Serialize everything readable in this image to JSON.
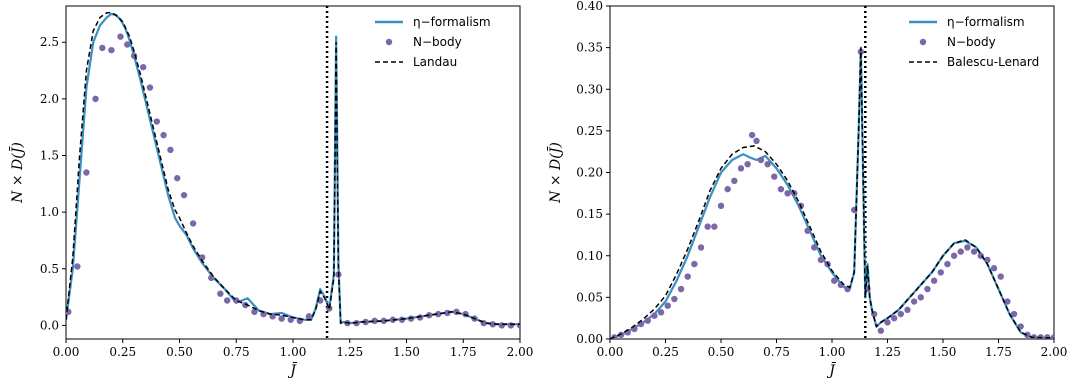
{
  "colors": {
    "eta": "#3a8fc3",
    "nbody": "#7b68a8",
    "dashed": "#000000",
    "vline": "#000000"
  },
  "chart_data": [
    {
      "type": "line",
      "title": "",
      "xlabel": "J̄",
      "ylabel": "N × D(J̄)",
      "xlim": [
        0.0,
        2.0
      ],
      "ylim": [
        -0.12,
        2.82
      ],
      "xticks": [
        "0.00",
        "0.25",
        "0.50",
        "0.75",
        "1.00",
        "1.25",
        "1.50",
        "1.75",
        "2.00"
      ],
      "yticks": [
        "0.0",
        "0.5",
        "1.0",
        "1.5",
        "2.0",
        "2.5"
      ],
      "grid": false,
      "legend_position": "top-right",
      "vertical_line_x": 1.15,
      "series": [
        {
          "name": "η−formalism",
          "style": "solid",
          "x": [
            0.0,
            0.03,
            0.06,
            0.09,
            0.12,
            0.15,
            0.18,
            0.2,
            0.22,
            0.24,
            0.26,
            0.28,
            0.3,
            0.33,
            0.36,
            0.39,
            0.42,
            0.45,
            0.48,
            0.5,
            0.53,
            0.56,
            0.6,
            0.65,
            0.7,
            0.75,
            0.8,
            0.85,
            0.9,
            0.95,
            1.0,
            1.05,
            1.08,
            1.1,
            1.12,
            1.14,
            1.16,
            1.18,
            1.19,
            1.2,
            1.21,
            1.22,
            1.25,
            1.3,
            1.4,
            1.5,
            1.6,
            1.7,
            1.75,
            1.8,
            1.85,
            1.9,
            2.0
          ],
          "y": [
            0.05,
            0.5,
            1.3,
            2.1,
            2.5,
            2.65,
            2.72,
            2.75,
            2.74,
            2.7,
            2.63,
            2.52,
            2.38,
            2.15,
            1.9,
            1.65,
            1.4,
            1.15,
            0.95,
            0.88,
            0.8,
            0.68,
            0.55,
            0.42,
            0.32,
            0.2,
            0.24,
            0.13,
            0.1,
            0.11,
            0.07,
            0.05,
            0.05,
            0.15,
            0.32,
            0.25,
            0.15,
            0.45,
            2.55,
            0.55,
            0.02,
            0.03,
            0.02,
            0.03,
            0.04,
            0.06,
            0.09,
            0.12,
            0.1,
            0.06,
            0.02,
            0.01,
            0.01
          ]
        },
        {
          "name": "N−body",
          "style": "markers",
          "x": [
            0.01,
            0.05,
            0.09,
            0.13,
            0.16,
            0.2,
            0.24,
            0.27,
            0.3,
            0.34,
            0.37,
            0.4,
            0.43,
            0.46,
            0.49,
            0.52,
            0.56,
            0.6,
            0.64,
            0.68,
            0.71,
            0.75,
            0.79,
            0.83,
            0.87,
            0.91,
            0.95,
            0.99,
            1.03,
            1.07,
            1.12,
            1.16,
            1.2,
            1.24,
            1.28,
            1.32,
            1.36,
            1.4,
            1.44,
            1.48,
            1.52,
            1.56,
            1.6,
            1.64,
            1.68,
            1.72,
            1.76,
            1.8,
            1.84,
            1.88,
            1.92,
            1.96,
            2.0
          ],
          "y": [
            0.12,
            0.52,
            1.35,
            2.0,
            2.45,
            2.43,
            2.55,
            2.48,
            2.38,
            2.28,
            2.1,
            1.8,
            1.68,
            1.55,
            1.3,
            1.15,
            0.9,
            0.6,
            0.42,
            0.28,
            0.22,
            0.22,
            0.18,
            0.12,
            0.1,
            0.08,
            0.06,
            0.05,
            0.04,
            0.08,
            0.22,
            0.15,
            0.45,
            0.02,
            0.02,
            0.03,
            0.04,
            0.04,
            0.05,
            0.05,
            0.06,
            0.07,
            0.09,
            0.1,
            0.11,
            0.12,
            0.1,
            0.06,
            0.02,
            0.01,
            0.0,
            0.0,
            0.0
          ]
        },
        {
          "name": "Landau",
          "style": "dashed",
          "x": [
            0.0,
            0.03,
            0.06,
            0.09,
            0.12,
            0.15,
            0.18,
            0.2,
            0.22,
            0.25,
            0.28,
            0.3,
            0.33,
            0.36,
            0.39,
            0.42,
            0.45,
            0.48,
            0.5,
            0.53,
            0.56,
            0.6,
            0.65,
            0.7,
            0.75,
            0.8,
            0.85,
            0.9,
            0.95,
            1.0,
            1.05,
            1.08,
            1.1,
            1.12,
            1.14,
            1.16,
            1.18,
            1.19,
            1.2,
            1.21,
            1.22,
            1.25,
            1.3,
            1.4,
            1.5,
            1.6,
            1.7,
            1.75,
            1.8,
            1.85,
            1.9,
            2.0
          ],
          "y": [
            0.05,
            0.6,
            1.5,
            2.25,
            2.6,
            2.72,
            2.76,
            2.76,
            2.74,
            2.68,
            2.55,
            2.42,
            2.2,
            1.95,
            1.7,
            1.45,
            1.2,
            1.02,
            0.95,
            0.82,
            0.7,
            0.57,
            0.43,
            0.32,
            0.22,
            0.18,
            0.13,
            0.1,
            0.09,
            0.07,
            0.05,
            0.05,
            0.14,
            0.3,
            0.24,
            0.14,
            0.42,
            2.5,
            0.5,
            0.02,
            0.03,
            0.02,
            0.03,
            0.04,
            0.06,
            0.09,
            0.12,
            0.1,
            0.06,
            0.02,
            0.01,
            0.01
          ]
        }
      ]
    },
    {
      "type": "line",
      "title": "",
      "xlabel": "J̄",
      "ylabel": "N × D(J̄)",
      "xlim": [
        0.0,
        2.0
      ],
      "ylim": [
        0.0,
        0.4
      ],
      "xticks": [
        "0.00",
        "0.25",
        "0.50",
        "0.75",
        "1.00",
        "1.25",
        "1.50",
        "1.75",
        "2.00"
      ],
      "yticks": [
        "0.00",
        "0.05",
        "0.10",
        "0.15",
        "0.20",
        "0.25",
        "0.30",
        "0.35",
        "0.40"
      ],
      "grid": false,
      "legend_position": "top-right",
      "vertical_line_x": 1.15,
      "series": [
        {
          "name": "η−formalism",
          "style": "solid",
          "x": [
            0.0,
            0.05,
            0.1,
            0.15,
            0.2,
            0.25,
            0.3,
            0.35,
            0.4,
            0.45,
            0.5,
            0.55,
            0.6,
            0.63,
            0.66,
            0.7,
            0.75,
            0.8,
            0.85,
            0.9,
            0.95,
            1.0,
            1.05,
            1.08,
            1.1,
            1.12,
            1.13,
            1.14,
            1.15,
            1.16,
            1.17,
            1.18,
            1.2,
            1.22,
            1.25,
            1.3,
            1.35,
            1.4,
            1.45,
            1.5,
            1.55,
            1.6,
            1.65,
            1.7,
            1.75,
            1.8,
            1.85,
            1.9,
            2.0
          ],
          "y": [
            0.0,
            0.005,
            0.012,
            0.02,
            0.03,
            0.045,
            0.07,
            0.1,
            0.135,
            0.17,
            0.2,
            0.215,
            0.222,
            0.218,
            0.215,
            0.22,
            0.205,
            0.185,
            0.16,
            0.13,
            0.1,
            0.08,
            0.063,
            0.06,
            0.08,
            0.25,
            0.35,
            0.2,
            0.05,
            0.09,
            0.05,
            0.035,
            0.015,
            0.02,
            0.025,
            0.035,
            0.05,
            0.065,
            0.08,
            0.1,
            0.115,
            0.118,
            0.11,
            0.09,
            0.06,
            0.03,
            0.008,
            0.002,
            0.001
          ]
        },
        {
          "name": "N−body",
          "style": "markers",
          "x": [
            0.02,
            0.05,
            0.08,
            0.11,
            0.14,
            0.17,
            0.2,
            0.23,
            0.26,
            0.29,
            0.32,
            0.35,
            0.38,
            0.41,
            0.44,
            0.47,
            0.5,
            0.53,
            0.56,
            0.59,
            0.62,
            0.64,
            0.66,
            0.68,
            0.71,
            0.74,
            0.77,
            0.8,
            0.83,
            0.86,
            0.89,
            0.92,
            0.95,
            0.98,
            1.01,
            1.04,
            1.07,
            1.1,
            1.13,
            1.16,
            1.19,
            1.22,
            1.25,
            1.28,
            1.31,
            1.34,
            1.37,
            1.4,
            1.43,
            1.46,
            1.49,
            1.52,
            1.55,
            1.58,
            1.61,
            1.64,
            1.67,
            1.7,
            1.73,
            1.76,
            1.79,
            1.82,
            1.85,
            1.88,
            1.91,
            1.94,
            1.97,
            2.0
          ],
          "y": [
            0.002,
            0.005,
            0.008,
            0.012,
            0.018,
            0.022,
            0.028,
            0.032,
            0.04,
            0.048,
            0.06,
            0.075,
            0.09,
            0.11,
            0.135,
            0.135,
            0.16,
            0.18,
            0.19,
            0.205,
            0.21,
            0.245,
            0.238,
            0.215,
            0.21,
            0.195,
            0.18,
            0.175,
            0.175,
            0.16,
            0.13,
            0.11,
            0.095,
            0.09,
            0.07,
            0.065,
            0.06,
            0.155,
            0.345,
            0.06,
            0.03,
            0.01,
            0.02,
            0.025,
            0.03,
            0.035,
            0.045,
            0.05,
            0.06,
            0.07,
            0.08,
            0.09,
            0.1,
            0.105,
            0.11,
            0.105,
            0.1,
            0.095,
            0.085,
            0.075,
            0.045,
            0.03,
            0.015,
            0.005,
            0.002,
            0.002,
            0.002,
            0.002
          ]
        },
        {
          "name": "Balescu-Lenard",
          "style": "dashed",
          "x": [
            0.0,
            0.05,
            0.1,
            0.15,
            0.2,
            0.25,
            0.3,
            0.35,
            0.4,
            0.45,
            0.5,
            0.55,
            0.6,
            0.65,
            0.7,
            0.75,
            0.8,
            0.85,
            0.9,
            0.95,
            1.0,
            1.05,
            1.08,
            1.1,
            1.12,
            1.13,
            1.14,
            1.15,
            1.16,
            1.17,
            1.18,
            1.2,
            1.22,
            1.25,
            1.3,
            1.35,
            1.4,
            1.45,
            1.5,
            1.55,
            1.6,
            1.65,
            1.7,
            1.75,
            1.8,
            1.85,
            1.9,
            2.0
          ],
          "y": [
            0.0,
            0.006,
            0.014,
            0.024,
            0.036,
            0.052,
            0.078,
            0.108,
            0.142,
            0.178,
            0.205,
            0.222,
            0.23,
            0.232,
            0.225,
            0.21,
            0.19,
            0.165,
            0.135,
            0.105,
            0.082,
            0.066,
            0.062,
            0.08,
            0.25,
            0.35,
            0.2,
            0.05,
            0.088,
            0.05,
            0.035,
            0.015,
            0.02,
            0.025,
            0.035,
            0.05,
            0.065,
            0.08,
            0.1,
            0.115,
            0.119,
            0.11,
            0.09,
            0.06,
            0.03,
            0.008,
            0.002,
            0.001
          ]
        }
      ]
    }
  ]
}
